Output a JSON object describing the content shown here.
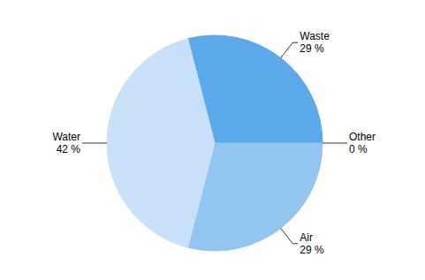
{
  "chart_data": {
    "type": "pie",
    "categories": [
      "Waste",
      "Other",
      "Air",
      "Water"
    ],
    "values": [
      29,
      0,
      29,
      42
    ],
    "value_labels": [
      "29 %",
      "0 %",
      "29 %",
      "42 %"
    ],
    "colors": [
      "#5ba8ea",
      "#2a6bb0",
      "#92c5f0",
      "#c8e0f8"
    ],
    "data_labels": true
  }
}
